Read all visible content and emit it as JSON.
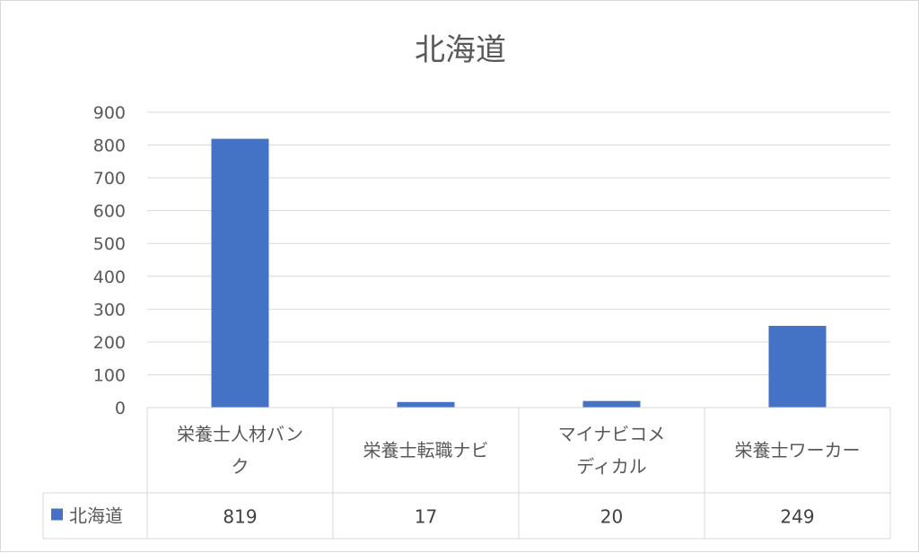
{
  "chart_data": {
    "type": "bar",
    "title": "北海道",
    "categories": [
      [
        "栄養士人材バン",
        "ク"
      ],
      [
        "栄養士転職ナビ"
      ],
      [
        "マイナビコメ",
        "ディカル"
      ],
      [
        "栄養士ワーカー"
      ]
    ],
    "series": [
      {
        "name": "北海道",
        "values": [
          819,
          17,
          20,
          249
        ],
        "color": "#4472C4"
      }
    ],
    "ylim": [
      0,
      900
    ],
    "yticks": [
      0,
      100,
      200,
      300,
      400,
      500,
      600,
      700,
      800,
      900
    ],
    "grid": true,
    "legend": "data-table",
    "gridline_color": "#d9d9d9",
    "text_color": "#595959"
  }
}
